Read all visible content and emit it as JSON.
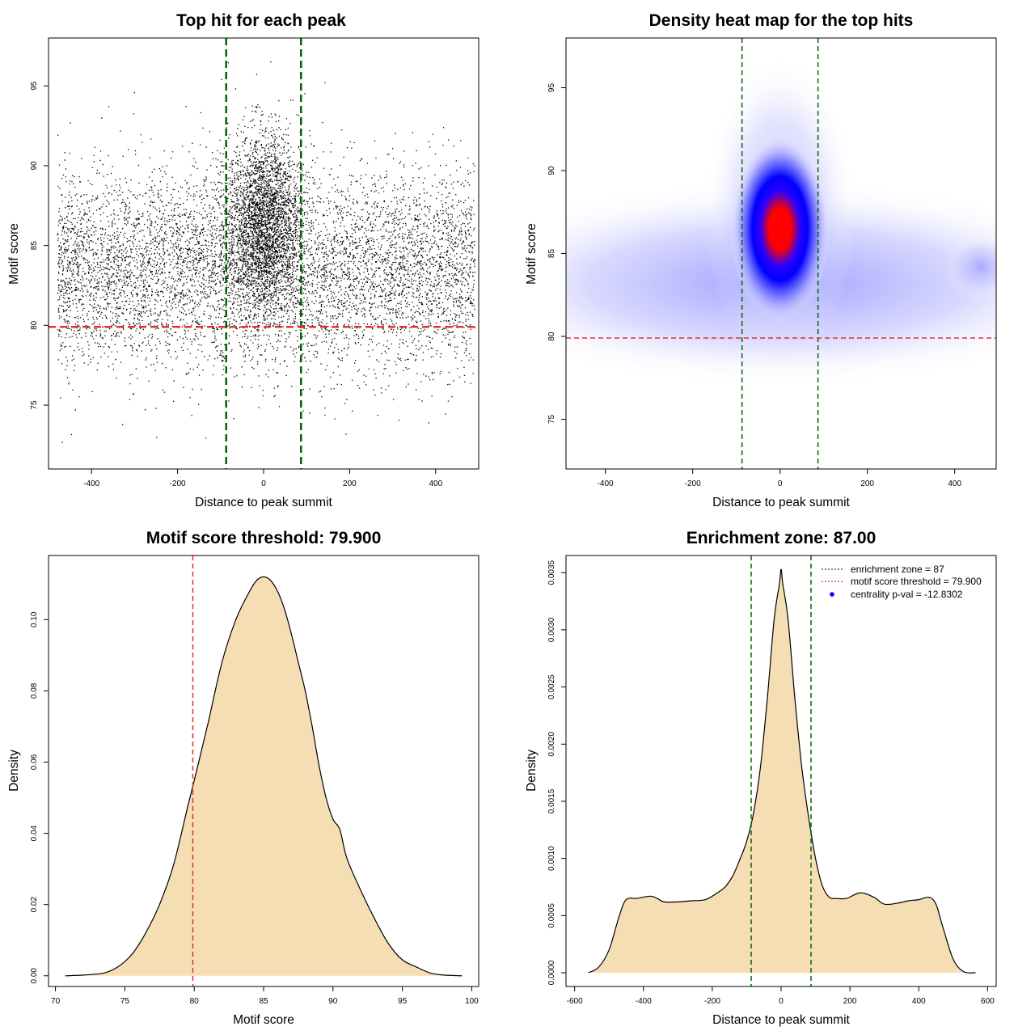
{
  "chart_data": [
    {
      "type": "scatter",
      "title": "Top hit for each peak",
      "xlabel": "Distance to peak summit",
      "ylabel": "Motif score",
      "xlim": [
        -500,
        500
      ],
      "ylim": [
        71,
        98
      ],
      "xticks": [
        -400,
        -200,
        0,
        200,
        400
      ],
      "yticks": [
        75,
        80,
        85,
        90,
        95
      ],
      "points_description": "Roughly 10000 points: uniform background across distance -480..490 with scores centered ~83.5, plus a dense central cluster near distance 0 with scores centered ~86.5 (up to ~97.8)",
      "n_points": 10000,
      "vlines": [
        -87,
        87
      ],
      "hline": 79.9,
      "vline_color": "#006400",
      "hline_color": "#e03030"
    },
    {
      "type": "heatmap",
      "title": "Density heat map for the top hits",
      "xlabel": "Distance to peak summit",
      "ylabel": "Motif score",
      "xlim": [
        -490,
        495
      ],
      "ylim": [
        72,
        98
      ],
      "xticks": [
        -400,
        -200,
        0,
        200,
        400
      ],
      "yticks": [
        75,
        80,
        85,
        90,
        95
      ],
      "density_peak": {
        "x": 0,
        "y": 86.5
      },
      "colormap": [
        "#ffffff",
        "#0000ff",
        "#ff0000"
      ],
      "vlines": [
        -87,
        87
      ],
      "hline": 79.9,
      "vline_color": "#006400",
      "hline_color": "#e03030"
    },
    {
      "type": "area",
      "title": "Motif score threshold: 79.900",
      "xlabel": "Motif score",
      "ylabel": "Density",
      "xlim": [
        69.5,
        100.5
      ],
      "ylim": [
        -0.003,
        0.118
      ],
      "xticks": [
        70,
        75,
        80,
        85,
        90,
        95,
        100
      ],
      "yticks": [
        0.0,
        0.02,
        0.04,
        0.06,
        0.08,
        0.1
      ],
      "ytick_labels": [
        "0.00",
        "0.02",
        "0.04",
        "0.06",
        "0.08",
        "0.10"
      ],
      "x": [
        70.7,
        72,
        73.5,
        74.5,
        75.5,
        76.5,
        77.5,
        78.5,
        79.5,
        80.2,
        81,
        82,
        83,
        84,
        84.5,
        85,
        85.5,
        86,
        86.5,
        87,
        87.5,
        88,
        88.5,
        89,
        89.5,
        90,
        90.5,
        91,
        92,
        93,
        94,
        95,
        96,
        97,
        98,
        99.3
      ],
      "values": [
        0.0,
        0.0002,
        0.0008,
        0.0025,
        0.006,
        0.012,
        0.02,
        0.031,
        0.047,
        0.058,
        0.071,
        0.088,
        0.1,
        0.108,
        0.111,
        0.112,
        0.111,
        0.108,
        0.103,
        0.096,
        0.088,
        0.08,
        0.07,
        0.059,
        0.05,
        0.044,
        0.041,
        0.033,
        0.024,
        0.016,
        0.009,
        0.0045,
        0.0025,
        0.0008,
        0.0002,
        0.0
      ],
      "fill_color": "#f5deb3",
      "vline": 79.9,
      "vline_color": "#e03030"
    },
    {
      "type": "area",
      "title": "Enrichment zone: 87.00",
      "xlabel": "Distance to peak summit",
      "ylabel": "Density",
      "xlim": [
        -625,
        625
      ],
      "ylim": [
        -0.00012,
        0.00365
      ],
      "xticks": [
        -600,
        -400,
        -200,
        0,
        200,
        400,
        600
      ],
      "yticks": [
        0.0,
        0.0005,
        0.001,
        0.0015,
        0.002,
        0.0025,
        0.003,
        0.0035
      ],
      "ytick_labels": [
        "0.0000",
        "0.0005",
        "0.0010",
        "0.0015",
        "0.0020",
        "0.0025",
        "0.0030",
        "0.0035"
      ],
      "x": [
        -560,
        -530,
        -500,
        -470,
        -450,
        -420,
        -380,
        -360,
        -340,
        -300,
        -260,
        -220,
        -180,
        -160,
        -140,
        -120,
        -100,
        -80,
        -60,
        -40,
        -20,
        -5,
        0,
        5,
        20,
        40,
        60,
        80,
        100,
        120,
        140,
        160,
        190,
        230,
        270,
        300,
        340,
        370,
        400,
        430,
        450,
        470,
        500,
        530,
        565
      ],
      "values": [
        0.0,
        5e-05,
        0.0002,
        0.0005,
        0.00064,
        0.00065,
        0.00067,
        0.00065,
        0.00062,
        0.00062,
        0.00063,
        0.00064,
        0.00071,
        0.00076,
        0.00085,
        0.00099,
        0.00115,
        0.0014,
        0.0018,
        0.0024,
        0.0031,
        0.0034,
        0.00353,
        0.0034,
        0.0031,
        0.0024,
        0.0018,
        0.00136,
        0.001,
        0.00076,
        0.00066,
        0.00065,
        0.00065,
        0.0007,
        0.00066,
        0.0006,
        0.00061,
        0.00063,
        0.00064,
        0.00066,
        0.0006,
        0.0004,
        0.00012,
        1e-05,
        0.0
      ],
      "fill_color": "#f5deb3",
      "vlines": [
        -87,
        87
      ],
      "vline_color": "#006400",
      "legend": {
        "placement": "top-right",
        "entries": [
          {
            "label": "enrichment zone = 87",
            "style": "dotted-line",
            "color": "#006400"
          },
          {
            "label": "motif score threshold = 79.900",
            "style": "dotted-line",
            "color": "#e03030"
          },
          {
            "label": "centrality p-val = -12.8302",
            "style": "point",
            "color": "#0000ff"
          }
        ]
      }
    }
  ]
}
